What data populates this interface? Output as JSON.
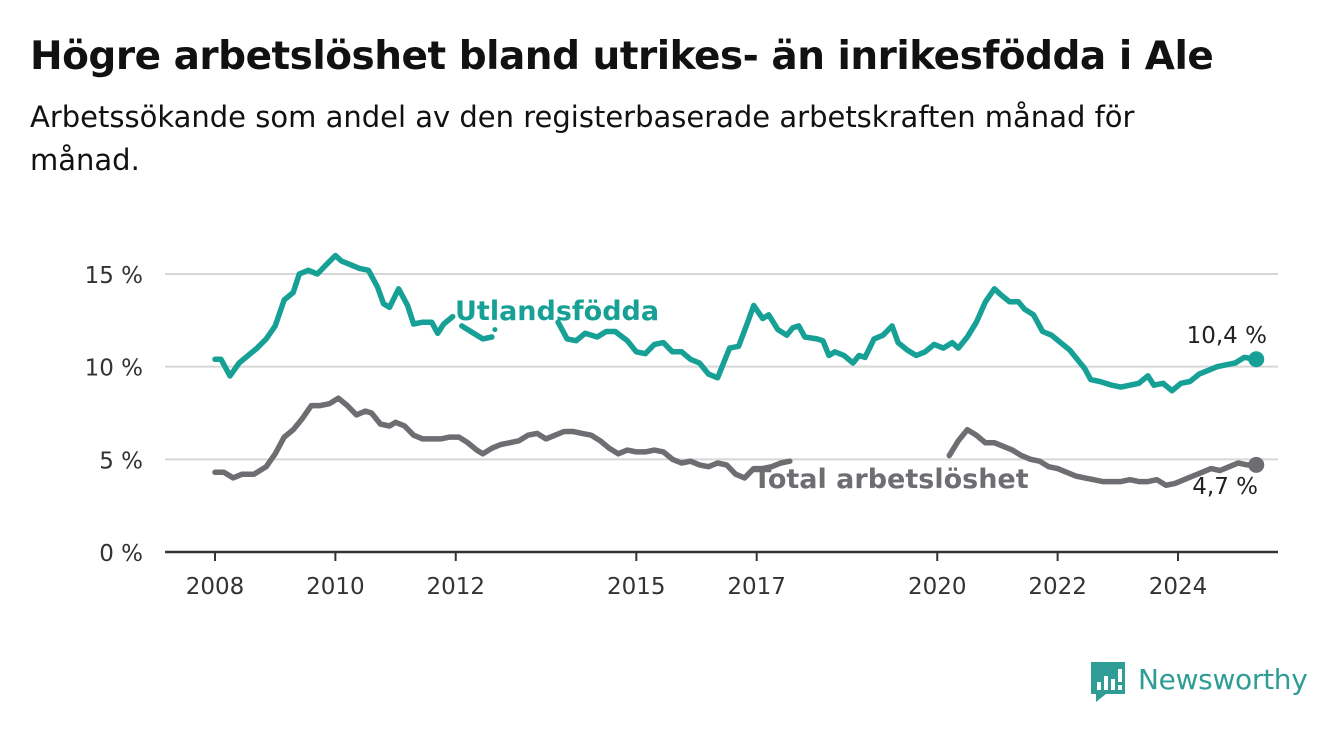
{
  "title": "Högre arbetslöshet bland utrikes- än inrikesfödda i Ale",
  "subtitle": "Arbetssökande som andel av den registerbaserade arbetskraften månad för månad.",
  "brand": {
    "name": "Newsworthy",
    "icon": "newsworthy-logo-icon",
    "color": "#2f9d96"
  },
  "chart_data": {
    "type": "line",
    "title": "Högre arbetslöshet bland utrikes- än inrikesfödda i Ale",
    "subtitle": "Arbetssökande som andel av den registerbaserade arbetskraften månad för månad.",
    "xlabel": "",
    "ylabel": "",
    "ylim": [
      0,
      16.5
    ],
    "xlim": [
      2007.9,
      2025.5
    ],
    "y_ticks": [
      0,
      5,
      10,
      15
    ],
    "y_tick_labels": [
      "0 %",
      "5 %",
      "10 %",
      "15 %"
    ],
    "x_ticks": [
      2008,
      2010,
      2012,
      2015,
      2017,
      2020,
      2022,
      2024
    ],
    "x_tick_labels": [
      "2008",
      "2010",
      "2012",
      "2015",
      "2017",
      "2020",
      "2022",
      "2024"
    ],
    "grid": "horizontal",
    "legend": "inline labels",
    "series": [
      {
        "name": "Utlandsfödda",
        "color": "#16a096",
        "end_label": "10,4 %",
        "points": [
          [
            2008.0,
            10.4
          ],
          [
            2008.1,
            10.4
          ],
          [
            2008.25,
            9.5
          ],
          [
            2008.4,
            10.2
          ],
          [
            2008.55,
            10.6
          ],
          [
            2008.7,
            11.0
          ],
          [
            2008.85,
            11.5
          ],
          [
            2009.0,
            12.2
          ],
          [
            2009.15,
            13.6
          ],
          [
            2009.3,
            14.0
          ],
          [
            2009.4,
            15.0
          ],
          [
            2009.55,
            15.2
          ],
          [
            2009.7,
            15.0
          ],
          [
            2009.85,
            15.5
          ],
          [
            2010.0,
            16.0
          ],
          [
            2010.1,
            15.7
          ],
          [
            2010.25,
            15.5
          ],
          [
            2010.4,
            15.3
          ],
          [
            2010.55,
            15.2
          ],
          [
            2010.7,
            14.3
          ],
          [
            2010.8,
            13.4
          ],
          [
            2010.9,
            13.2
          ],
          [
            2011.05,
            14.2
          ],
          [
            2011.2,
            13.3
          ],
          [
            2011.3,
            12.3
          ],
          [
            2011.45,
            12.4
          ],
          [
            2011.6,
            12.4
          ],
          [
            2011.7,
            11.8
          ],
          [
            2011.8,
            12.3
          ],
          [
            2011.95,
            12.7
          ]
        ],
        "points_b": [
          [
            2012.1,
            12.2
          ],
          [
            2012.25,
            11.9
          ],
          [
            2012.45,
            11.5
          ],
          [
            2012.6,
            11.6
          ]
        ],
        "points_c": [
          [
            2012.65,
            12.0
          ]
        ],
        "points_d": [
          [
            2013.7,
            12.4
          ],
          [
            2013.85,
            11.5
          ],
          [
            2014.0,
            11.4
          ],
          [
            2014.15,
            11.8
          ],
          [
            2014.35,
            11.6
          ],
          [
            2014.5,
            11.9
          ],
          [
            2014.65,
            11.9
          ],
          [
            2014.85,
            11.4
          ],
          [
            2015.0,
            10.8
          ],
          [
            2015.15,
            10.7
          ],
          [
            2015.3,
            11.2
          ],
          [
            2015.45,
            11.3
          ],
          [
            2015.6,
            10.8
          ],
          [
            2015.75,
            10.8
          ],
          [
            2015.9,
            10.4
          ],
          [
            2016.05,
            10.2
          ],
          [
            2016.2,
            9.6
          ],
          [
            2016.35,
            9.4
          ],
          [
            2016.55,
            11.0
          ],
          [
            2016.7,
            11.1
          ],
          [
            2016.85,
            12.4
          ],
          [
            2016.95,
            13.3
          ],
          [
            2017.1,
            12.6
          ],
          [
            2017.2,
            12.8
          ],
          [
            2017.35,
            12.0
          ],
          [
            2017.5,
            11.7
          ],
          [
            2017.6,
            12.1
          ],
          [
            2017.7,
            12.2
          ],
          [
            2017.8,
            11.6
          ],
          [
            2018.0,
            11.5
          ],
          [
            2018.1,
            11.4
          ],
          [
            2018.2,
            10.6
          ],
          [
            2018.3,
            10.8
          ],
          [
            2018.45,
            10.6
          ],
          [
            2018.6,
            10.2
          ],
          [
            2018.7,
            10.6
          ],
          [
            2018.8,
            10.5
          ],
          [
            2018.95,
            11.5
          ],
          [
            2019.1,
            11.7
          ],
          [
            2019.25,
            12.2
          ],
          [
            2019.35,
            11.3
          ],
          [
            2019.5,
            10.9
          ],
          [
            2019.65,
            10.6
          ],
          [
            2019.8,
            10.8
          ],
          [
            2019.95,
            11.2
          ],
          [
            2020.1,
            11.0
          ],
          [
            2020.25,
            11.3
          ],
          [
            2020.35,
            11.0
          ],
          [
            2020.5,
            11.6
          ],
          [
            2020.65,
            12.4
          ],
          [
            2020.8,
            13.5
          ],
          [
            2020.95,
            14.2
          ],
          [
            2021.05,
            13.9
          ],
          [
            2021.2,
            13.5
          ],
          [
            2021.35,
            13.5
          ],
          [
            2021.45,
            13.1
          ],
          [
            2021.6,
            12.8
          ],
          [
            2021.75,
            11.9
          ],
          [
            2021.9,
            11.7
          ],
          [
            2022.05,
            11.3
          ],
          [
            2022.2,
            10.9
          ],
          [
            2022.35,
            10.3
          ],
          [
            2022.45,
            9.9
          ],
          [
            2022.55,
            9.3
          ],
          [
            2022.7,
            9.2
          ],
          [
            2022.9,
            9.0
          ],
          [
            2023.05,
            8.9
          ],
          [
            2023.2,
            9.0
          ],
          [
            2023.35,
            9.1
          ],
          [
            2023.5,
            9.5
          ],
          [
            2023.6,
            9.0
          ],
          [
            2023.75,
            9.1
          ],
          [
            2023.9,
            8.7
          ],
          [
            2024.05,
            9.1
          ],
          [
            2024.2,
            9.2
          ],
          [
            2024.35,
            9.6
          ],
          [
            2024.5,
            9.8
          ],
          [
            2024.65,
            10.0
          ],
          [
            2024.8,
            10.1
          ],
          [
            2024.95,
            10.2
          ],
          [
            2025.1,
            10.5
          ],
          [
            2025.3,
            10.4
          ]
        ]
      },
      {
        "name": "Total arbetslöshet",
        "color": "#6e6d72",
        "end_label": "4,7 %",
        "points": [
          [
            2008.0,
            4.3
          ],
          [
            2008.15,
            4.3
          ],
          [
            2008.3,
            4.0
          ],
          [
            2008.45,
            4.2
          ],
          [
            2008.65,
            4.2
          ],
          [
            2008.85,
            4.6
          ],
          [
            2009.0,
            5.3
          ],
          [
            2009.15,
            6.2
          ],
          [
            2009.3,
            6.6
          ],
          [
            2009.45,
            7.2
          ],
          [
            2009.6,
            7.9
          ],
          [
            2009.75,
            7.9
          ],
          [
            2009.9,
            8.0
          ],
          [
            2010.05,
            8.3
          ],
          [
            2010.2,
            7.9
          ],
          [
            2010.35,
            7.4
          ],
          [
            2010.5,
            7.6
          ],
          [
            2010.6,
            7.5
          ],
          [
            2010.75,
            6.9
          ],
          [
            2010.9,
            6.8
          ],
          [
            2011.0,
            7.0
          ],
          [
            2011.15,
            6.8
          ],
          [
            2011.3,
            6.3
          ],
          [
            2011.45,
            6.1
          ],
          [
            2011.6,
            6.1
          ],
          [
            2011.75,
            6.1
          ],
          [
            2011.9,
            6.2
          ],
          [
            2012.05,
            6.2
          ],
          [
            2012.2,
            5.9
          ],
          [
            2012.35,
            5.5
          ],
          [
            2012.45,
            5.3
          ],
          [
            2012.6,
            5.6
          ],
          [
            2012.75,
            5.8
          ],
          [
            2012.9,
            5.9
          ],
          [
            2013.05,
            6.0
          ],
          [
            2013.2,
            6.3
          ],
          [
            2013.35,
            6.4
          ],
          [
            2013.5,
            6.1
          ],
          [
            2013.65,
            6.3
          ],
          [
            2013.8,
            6.5
          ],
          [
            2013.95,
            6.5
          ],
          [
            2014.1,
            6.4
          ],
          [
            2014.25,
            6.3
          ],
          [
            2014.4,
            6.0
          ],
          [
            2014.55,
            5.6
          ],
          [
            2014.7,
            5.3
          ],
          [
            2014.85,
            5.5
          ],
          [
            2015.0,
            5.4
          ],
          [
            2015.15,
            5.4
          ],
          [
            2015.3,
            5.5
          ],
          [
            2015.45,
            5.4
          ],
          [
            2015.6,
            5.0
          ],
          [
            2015.75,
            4.8
          ],
          [
            2015.9,
            4.9
          ],
          [
            2016.05,
            4.7
          ],
          [
            2016.2,
            4.6
          ],
          [
            2016.35,
            4.8
          ],
          [
            2016.5,
            4.7
          ],
          [
            2016.65,
            4.2
          ],
          [
            2016.8,
            4.0
          ],
          [
            2016.95,
            4.5
          ],
          [
            2017.1,
            4.5
          ],
          [
            2017.25,
            4.6
          ],
          [
            2017.4,
            4.8
          ],
          [
            2017.55,
            4.9
          ]
        ],
        "points_b": [
          [
            2020.2,
            5.2
          ],
          [
            2020.35,
            6.0
          ],
          [
            2020.5,
            6.6
          ],
          [
            2020.65,
            6.3
          ],
          [
            2020.8,
            5.9
          ],
          [
            2020.95,
            5.9
          ],
          [
            2021.1,
            5.7
          ],
          [
            2021.25,
            5.5
          ],
          [
            2021.4,
            5.2
          ],
          [
            2021.55,
            5.0
          ],
          [
            2021.7,
            4.9
          ],
          [
            2021.85,
            4.6
          ],
          [
            2022.0,
            4.5
          ],
          [
            2022.15,
            4.3
          ],
          [
            2022.3,
            4.1
          ],
          [
            2022.45,
            4.0
          ],
          [
            2022.6,
            3.9
          ],
          [
            2022.75,
            3.8
          ],
          [
            2022.9,
            3.8
          ],
          [
            2023.05,
            3.8
          ],
          [
            2023.2,
            3.9
          ],
          [
            2023.35,
            3.8
          ],
          [
            2023.5,
            3.8
          ],
          [
            2023.65,
            3.9
          ],
          [
            2023.8,
            3.6
          ],
          [
            2023.95,
            3.7
          ],
          [
            2024.1,
            3.9
          ],
          [
            2024.25,
            4.1
          ],
          [
            2024.4,
            4.3
          ],
          [
            2024.55,
            4.5
          ],
          [
            2024.7,
            4.4
          ],
          [
            2024.85,
            4.6
          ],
          [
            2025.0,
            4.8
          ],
          [
            2025.15,
            4.7
          ],
          [
            2025.3,
            4.7
          ]
        ]
      }
    ]
  }
}
